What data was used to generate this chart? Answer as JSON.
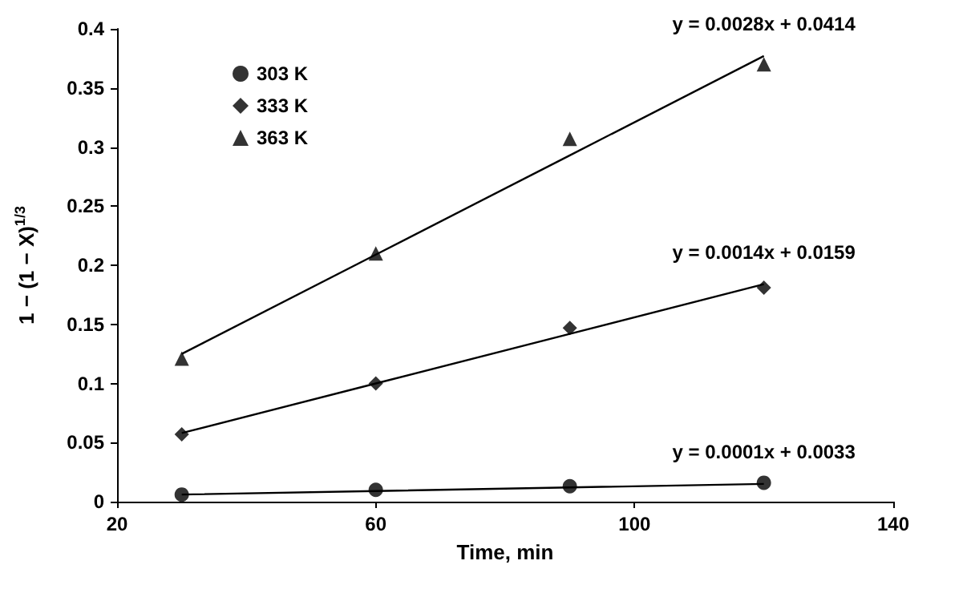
{
  "chart_data": {
    "type": "scatter",
    "xlabel": "Time, min",
    "ylabel": "1 − (1 − X)$^{1/3}$",
    "xlim": [
      20,
      140
    ],
    "xticks": [
      20,
      60,
      100,
      140
    ],
    "ylim": [
      0,
      0.4
    ],
    "yticks": [
      0,
      0.05,
      0.1,
      0.15,
      0.2,
      0.25,
      0.3,
      0.35,
      0.4
    ],
    "x": [
      30,
      60,
      90,
      120
    ],
    "grid": false,
    "legend": "top left",
    "series": [
      {
        "name": "303 K",
        "color": "#000000",
        "marker": "circle",
        "values": [
          0.006,
          0.01,
          0.013,
          0.016
        ]
      },
      {
        "name": "333 K",
        "color": "#000000",
        "marker": "diamond",
        "values": [
          0.057,
          0.1,
          0.147,
          0.181
        ]
      },
      {
        "name": "363 K",
        "color": "#000000",
        "marker": "triangle",
        "values": [
          0.121,
          0.21,
          0.307,
          0.37
        ]
      },
      {
        "type": "line",
        "color": "#000000",
        "x": [
          30,
          60,
          90,
          120
        ],
        "values": [
          0.006,
          0.009,
          0.012,
          0.015
        ]
      },
      {
        "type": "line",
        "color": "#000000",
        "x": [
          30,
          60,
          90,
          120
        ],
        "values": [
          0.058,
          0.1,
          0.142,
          0.184
        ]
      },
      {
        "type": "line",
        "color": "#000000",
        "x": [
          30,
          60,
          90,
          120
        ],
        "values": [
          0.125,
          0.209,
          0.293,
          0.377
        ]
      }
    ],
    "annotations": [
      "y = 0.0001x + 0.0033",
      "y = 0.0014x + 0.0159",
      "y = 0.0028x + 0.0414"
    ]
  }
}
